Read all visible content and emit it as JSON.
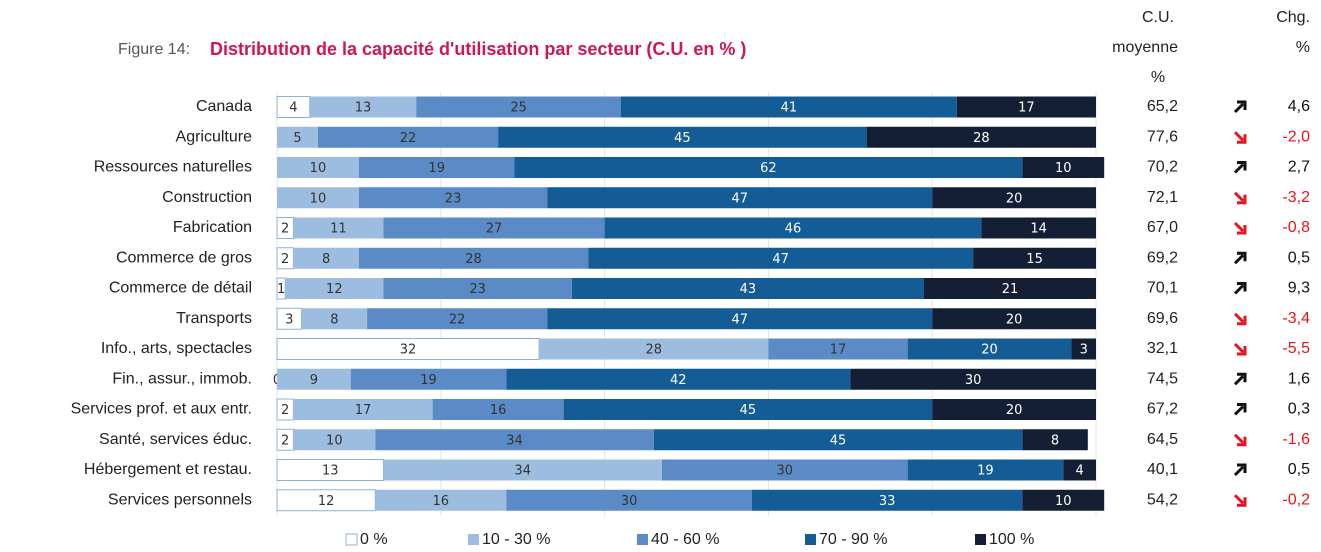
{
  "chart_data": {
    "type": "stacked-bar",
    "figure_label": "Figure 14:",
    "title": "Distribution de la capacité d'utilisation par secteur (C.U. en % )",
    "categories": [
      "Canada",
      "Agriculture",
      "Ressources naturelles",
      "Construction",
      "Fabrication",
      "Commerce de gros",
      "Commerce de détail",
      "Transports",
      "Info., arts, spectacles",
      "Fin., assur., immob.",
      "Services prof. et aux entr.",
      "Santé, services éduc.",
      "Hébergement et restau.",
      "Services personnels"
    ],
    "series": [
      {
        "name": "0 %",
        "color": "#ffffff",
        "values": [
          4,
          null,
          null,
          null,
          2,
          2,
          1,
          3,
          32,
          0,
          2,
          2,
          13,
          12
        ]
      },
      {
        "name": "10 - 30 %",
        "color": "#9dbde0",
        "values": [
          13,
          5,
          10,
          10,
          11,
          8,
          12,
          8,
          28,
          9,
          17,
          10,
          34,
          16
        ]
      },
      {
        "name": "40 - 60 %",
        "color": "#5b8bc6",
        "values": [
          25,
          22,
          19,
          23,
          27,
          28,
          23,
          22,
          17,
          19,
          16,
          34,
          30,
          30
        ]
      },
      {
        "name": "70 - 90 %",
        "color": "#135c96",
        "values": [
          41,
          45,
          62,
          47,
          46,
          47,
          43,
          47,
          20,
          42,
          45,
          45,
          19,
          33
        ]
      },
      {
        "name": "100 %",
        "color": "#141f36",
        "values": [
          17,
          28,
          10,
          20,
          14,
          15,
          21,
          20,
          3,
          30,
          20,
          8,
          4,
          10
        ]
      }
    ],
    "xlim": [
      0,
      100
    ],
    "xticks": [
      0,
      20,
      40,
      60,
      80,
      100
    ],
    "grid": true,
    "cu_header": [
      "C.U.",
      "moyenne",
      "%"
    ],
    "cu_values": [
      65.2,
      77.6,
      70.2,
      72.1,
      67.0,
      69.2,
      70.1,
      69.6,
      32.1,
      74.5,
      67.2,
      64.5,
      40.1,
      54.2
    ],
    "cu_value_labels": [
      "65,2",
      "77,6",
      "70,2",
      "72,1",
      "67,0",
      "69,2",
      "70,1",
      "69,6",
      "32,1",
      "74,5",
      "67,2",
      "64,5",
      "40,1",
      "54,2"
    ],
    "chg_header": [
      "Chg.",
      "%"
    ],
    "chg_values": [
      4.6,
      -2.0,
      2.7,
      -3.2,
      -0.8,
      0.5,
      9.3,
      -3.4,
      -5.5,
      1.6,
      0.3,
      -1.6,
      0.5,
      -0.2
    ],
    "chg_value_labels": [
      "4,6",
      "-2,0",
      "2,7",
      "-3,2",
      "-0,8",
      "0,5",
      "9,3",
      "-3,4",
      "-5,5",
      "1,6",
      "0,3",
      "-1,6",
      "0,5",
      "-0,2"
    ]
  }
}
